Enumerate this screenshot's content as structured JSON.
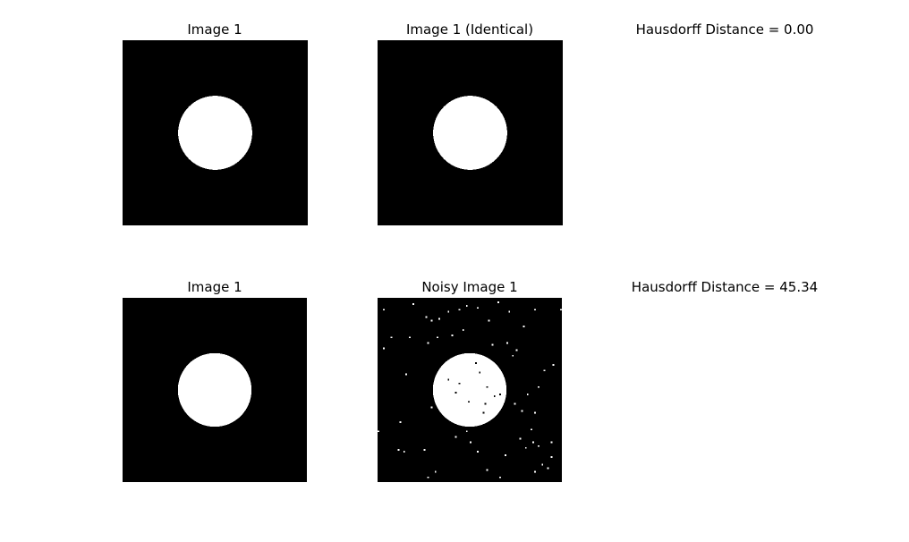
{
  "figure": {
    "rows": [
      {
        "left": {
          "title": "Image 1"
        },
        "right": {
          "title": "Image 1 (Identical)"
        },
        "metric": {
          "text": "Hausdorff Distance = 0.00"
        }
      },
      {
        "left": {
          "title": "Image 1"
        },
        "right": {
          "title": "Noisy Image 1"
        },
        "metric": {
          "text": "Hausdorff Distance = 45.34"
        }
      }
    ],
    "colors": {
      "background": "#000000",
      "foreground": "#ffffff"
    }
  }
}
